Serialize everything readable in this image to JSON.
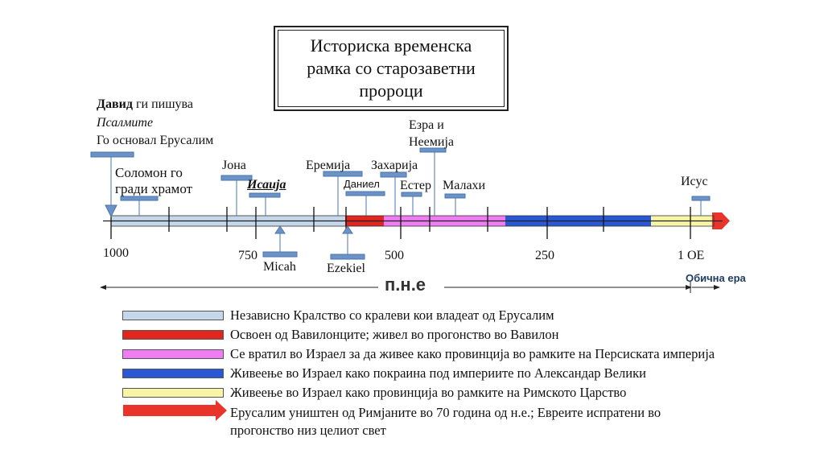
{
  "title": "Историска временска\nрамка со старозаветни\nпророци",
  "david": {
    "name": "Давид",
    "line1_rest": " ги пишува",
    "line2": "Псалмите",
    "line3": "Го  основал Ерусалим"
  },
  "labels": {
    "solomon": "Соломон го\nгради храмот",
    "jona": "Јона",
    "isaija": "Исаија",
    "micah": "Micah",
    "eremija": "Еремија",
    "daniel": "Даниел",
    "ezekiel": "Ezekiel",
    "zaharija": "Захарија",
    "ezra": "Езра и\nНеемија",
    "ester": "Естер",
    "malahi": "Малахи",
    "isus": "Исус"
  },
  "axis": {
    "ticks": [
      "1000",
      "750",
      "500",
      "250",
      "1 OE"
    ],
    "bce_label": "п.н.е",
    "ce_label": "Обична ера"
  },
  "colors": {
    "kingdom": "#c5d7ea",
    "babylon": "#e0261f",
    "persia": "#ee7cf2",
    "alexander": "#2a57d6",
    "rome": "#f8f6a6",
    "arrow": "#e8342a",
    "marker": "#6b93c5"
  },
  "legend": [
    {
      "key": "kingdom",
      "text": "Независно Кралство со кралеви кои владеат од Ерусалим"
    },
    {
      "key": "babylon",
      "text": "Освоен од Вавилонците; живел во прогонство во Вавилон"
    },
    {
      "key": "persia",
      "text": "Се вратил во Израел за да живее како провинција во рамките на Персиската империја"
    },
    {
      "key": "alexander",
      "text": "Живеење во Израел како покраина под империите по Александар Велики"
    },
    {
      "key": "rome",
      "text": "Живеење во Израел како провинција во рамките на Римското Царство"
    },
    {
      "key": "arrow",
      "text": "Ерусалим уништен од Римјаните во 70 година од н.е.; Евреите испратени во\nпрогонство низ целиот свет"
    }
  ]
}
